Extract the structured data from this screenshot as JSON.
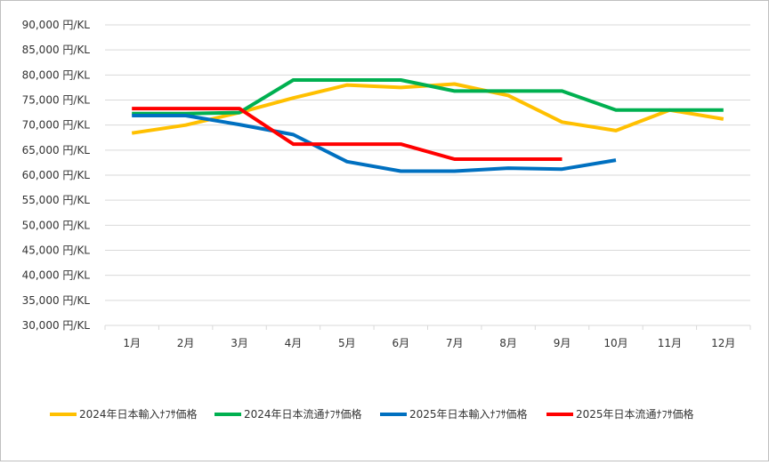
{
  "chart_data": {
    "type": "line",
    "title": "",
    "xlabel": "",
    "ylabel": "",
    "categories": [
      "1月",
      "2月",
      "3月",
      "4月",
      "5月",
      "6月",
      "7月",
      "8月",
      "9月",
      "10月",
      "11月",
      "12月"
    ],
    "ylim": [
      30000,
      90000
    ],
    "yticks": [
      30000,
      35000,
      40000,
      45000,
      50000,
      55000,
      60000,
      65000,
      70000,
      75000,
      80000,
      85000,
      90000
    ],
    "ytick_labels": [
      "30,000 円/KL",
      "35,000 円/KL",
      "40,000 円/KL",
      "45,000 円/KL",
      "50,000 円/KL",
      "55,000 円/KL",
      "60,000 円/KL",
      "65,000 円/KL",
      "70,000 円/KL",
      "75,000 円/KL",
      "80,000 円/KL",
      "85,000 円/KL",
      "90,000 円/KL"
    ],
    "grid": true,
    "legend_position": "bottom",
    "series": [
      {
        "name": "2024年日本輸入ﾅﾌｻ価格",
        "color": "#FFC000",
        "values": [
          68400,
          70000,
          72500,
          75400,
          78000,
          77500,
          78200,
          75900,
          70600,
          68900,
          73000,
          71200
        ]
      },
      {
        "name": "2024年日本流通ﾅﾌｻ価格",
        "color": "#00B050",
        "values": [
          72300,
          72300,
          72500,
          79000,
          79000,
          79000,
          76800,
          76800,
          76800,
          73000,
          73000,
          73000
        ]
      },
      {
        "name": "2025年日本輸入ﾅﾌｻ価格",
        "color": "#0070C0",
        "values": [
          71900,
          71900,
          70100,
          68100,
          62700,
          60800,
          60800,
          61400,
          61200,
          63000,
          null,
          null
        ]
      },
      {
        "name": "2025年日本流通ﾅﾌｻ価格",
        "color": "#FF0000",
        "values": [
          73300,
          73300,
          73300,
          66200,
          66200,
          66200,
          63200,
          63200,
          63200,
          null,
          null,
          null
        ]
      }
    ]
  }
}
